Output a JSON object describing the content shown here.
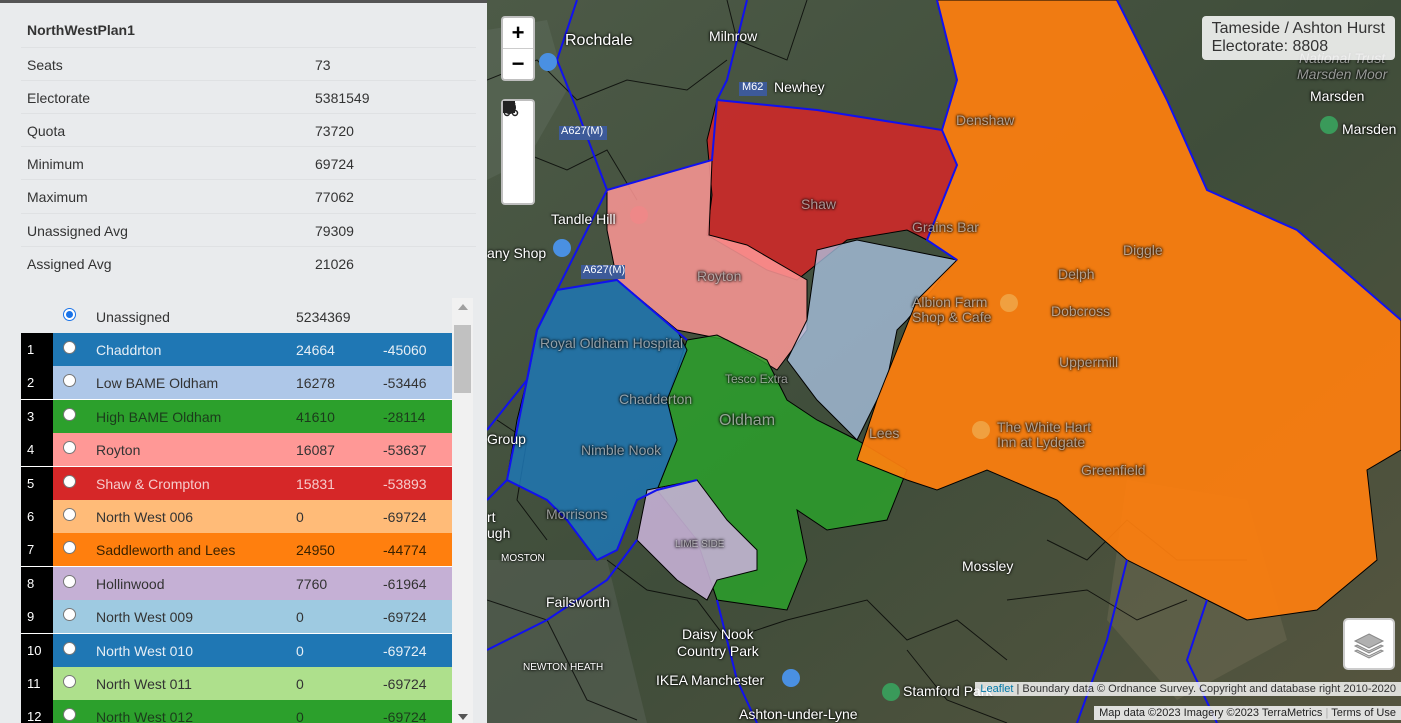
{
  "plan": {
    "title": "NorthWestPlan1",
    "stats": [
      {
        "label": "Seats",
        "value": "73"
      },
      {
        "label": "Electorate",
        "value": "5381549"
      },
      {
        "label": "Quota",
        "value": "73720"
      },
      {
        "label": "Minimum",
        "value": "69724"
      },
      {
        "label": "Maximum",
        "value": "77062"
      },
      {
        "label": "Unassigned Avg",
        "value": "79309"
      },
      {
        "label": "Assigned Avg",
        "value": "21026"
      }
    ]
  },
  "districts": {
    "unassigned": {
      "name": "Unassigned",
      "population": "5234369",
      "selected": true
    },
    "rows": [
      {
        "num": "1",
        "name": "Chaddrton",
        "population": "24664",
        "deviation": "-45060",
        "color": "#1f77b4",
        "text_color": "#e6eef5"
      },
      {
        "num": "2",
        "name": "Low BAME Oldham",
        "population": "16278",
        "deviation": "-53446",
        "color": "#aec7e8",
        "text_color": "#333333"
      },
      {
        "num": "3",
        "name": "High BAME Oldham",
        "population": "41610",
        "deviation": "-28114",
        "color": "#2ca02c",
        "text_color": "#1b3b1b"
      },
      {
        "num": "4",
        "name": "Royton",
        "population": "16087",
        "deviation": "-53637",
        "color": "#ff9896",
        "text_color": "#333333"
      },
      {
        "num": "5",
        "name": "Shaw & Crompton",
        "population": "15831",
        "deviation": "-53893",
        "color": "#d62728",
        "text_color": "#f6cccc"
      },
      {
        "num": "6",
        "name": "North West 006",
        "population": "0",
        "deviation": "-69724",
        "color": "#ffbb78",
        "text_color": "#333333"
      },
      {
        "num": "7",
        "name": "Saddleworth and Lees",
        "population": "24950",
        "deviation": "-44774",
        "color": "#ff7f0e",
        "text_color": "#3a2200"
      },
      {
        "num": "8",
        "name": "Hollinwood",
        "population": "7760",
        "deviation": "-61964",
        "color": "#c5b0d5",
        "text_color": "#333333"
      },
      {
        "num": "9",
        "name": "North West 009",
        "population": "0",
        "deviation": "-69724",
        "color": "#9ecae1",
        "text_color": "#333333"
      },
      {
        "num": "10",
        "name": "North West 010",
        "population": "0",
        "deviation": "-69724",
        "color": "#1f77b4",
        "text_color": "#e6eef5"
      },
      {
        "num": "11",
        "name": "North West 011",
        "population": "0",
        "deviation": "-69724",
        "color": "#aee08c",
        "text_color": "#333333"
      },
      {
        "num": "12",
        "name": "North West 012",
        "population": "0",
        "deviation": "-69724",
        "color": "#2ca02c",
        "text_color": "#1b3b1b"
      }
    ]
  },
  "map": {
    "zoom_in": "+",
    "zoom_out": "−",
    "tools": [
      "scissors-icon",
      "square-icon",
      "circle-icon"
    ],
    "info": {
      "line1": "Tameside / Ashton Hurst",
      "line2": "Electorate: 8808"
    },
    "attribution_link": "Leaflet",
    "attribution_text": "| Boundary data © Ordnance Survey. Copyright and database right 2010-2020",
    "imagery_text": "Map data ©2023 Imagery ©2023 TerraMetrics",
    "terms_text": "Terms of Use",
    "labels": [
      "Rochdale",
      "Milnrow",
      "Newhey",
      "M62",
      "A627(M)",
      "Tandle Hill",
      "any Shop",
      "A627(M)",
      "Royton",
      "Shaw",
      "Denshaw",
      "Grains Bar",
      "Delph",
      "Diggle",
      "Marsden",
      "Marsden Moor",
      "Marsden",
      "National Trust",
      "Albion Farm",
      "Shop & Cafe",
      "Dobcross",
      "Uppermill",
      "Royal Oldham Hospital",
      "Tesco Extra",
      "Chadderton",
      "Oldham",
      "Lees",
      "The White Hart",
      "Inn at Lydgate",
      "Greenfield",
      "Group",
      "Nimble Nook",
      "Morrisons",
      "LIME SIDE",
      "Mossley",
      "Failsworth",
      "Daisy Nook",
      "Country Park",
      "NEWTON HEATH",
      "IKEA Manchester",
      "Ashton-under-Lyne",
      "Stamford Park",
      "MOSTON",
      "rt",
      "ugh"
    ]
  }
}
